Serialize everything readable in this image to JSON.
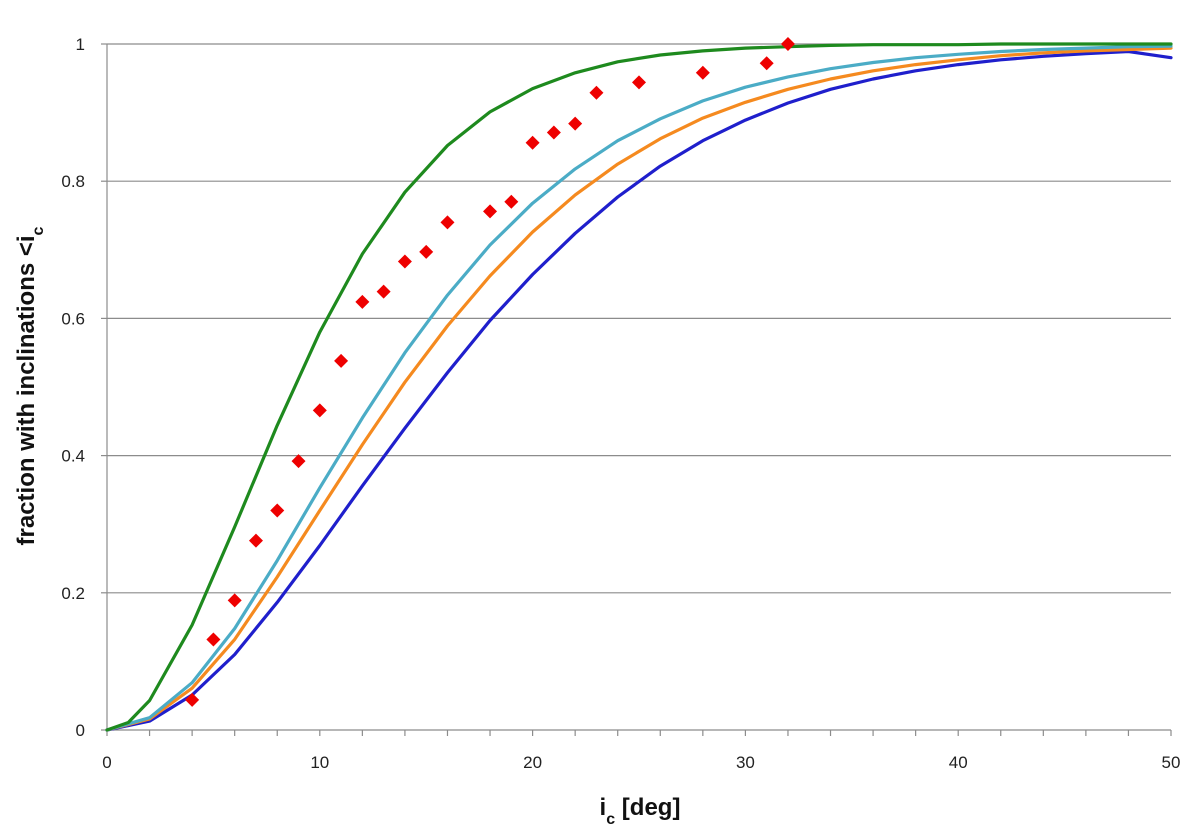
{
  "chart_data": {
    "type": "line",
    "title": "",
    "xlabel": "i",
    "xlabel_sub": "c",
    "xlabel_unit": " [deg]",
    "ylabel": "fraction with inclinations <i",
    "ylabel_sub": "c",
    "xlim": [
      0,
      50
    ],
    "ylim": [
      0,
      1
    ],
    "x_ticks": [
      0,
      10,
      20,
      30,
      40,
      50
    ],
    "x_minor_step": 2,
    "y_ticks": [
      0,
      0.2,
      0.4,
      0.6,
      0.8,
      1
    ],
    "grid": "horizontal",
    "legend": "none",
    "series": [
      {
        "type": "line",
        "color": "#1f1fcc",
        "x": [
          0,
          2,
          4,
          6,
          8,
          10,
          12,
          14,
          16,
          18,
          20,
          22,
          24,
          26,
          28,
          30,
          32,
          34,
          36,
          38,
          40,
          42,
          44,
          46,
          48,
          50
        ],
        "y": [
          0,
          0.013,
          0.051,
          0.11,
          0.186,
          0.269,
          0.356,
          0.44,
          0.521,
          0.597,
          0.664,
          0.724,
          0.777,
          0.822,
          0.859,
          0.889,
          0.914,
          0.934,
          0.949,
          0.961,
          0.97,
          0.977,
          0.982,
          0.986,
          0.989,
          0.98
        ]
      },
      {
        "type": "line",
        "color": "#f58a1f",
        "x": [
          0,
          2,
          4,
          6,
          8,
          10,
          12,
          14,
          16,
          18,
          20,
          22,
          24,
          26,
          28,
          30,
          32,
          34,
          36,
          38,
          40,
          42,
          44,
          46,
          48,
          50
        ],
        "y": [
          0,
          0.016,
          0.061,
          0.132,
          0.223,
          0.32,
          0.416,
          0.507,
          0.589,
          0.662,
          0.726,
          0.78,
          0.825,
          0.862,
          0.892,
          0.915,
          0.934,
          0.949,
          0.961,
          0.97,
          0.977,
          0.983,
          0.987,
          0.99,
          0.992,
          0.994
        ]
      },
      {
        "type": "line",
        "color": "#4bacc6",
        "x": [
          0,
          2,
          4,
          6,
          8,
          10,
          12,
          14,
          16,
          18,
          20,
          22,
          24,
          26,
          28,
          30,
          32,
          34,
          36,
          38,
          40,
          42,
          44,
          46,
          48,
          50
        ],
        "y": [
          0,
          0.018,
          0.069,
          0.148,
          0.247,
          0.353,
          0.455,
          0.55,
          0.634,
          0.707,
          0.768,
          0.818,
          0.859,
          0.891,
          0.917,
          0.937,
          0.952,
          0.964,
          0.973,
          0.98,
          0.985,
          0.989,
          0.992,
          0.994,
          0.996,
          0.997
        ]
      },
      {
        "type": "line",
        "color": "#1e8a1e",
        "x": [
          0,
          1,
          2,
          4,
          6,
          8,
          10,
          12,
          14,
          16,
          18,
          20,
          22,
          24,
          26,
          28,
          30,
          32,
          34,
          36,
          38,
          40,
          42,
          44,
          46,
          48,
          50
        ],
        "y": [
          0,
          0.011,
          0.043,
          0.153,
          0.296,
          0.444,
          0.58,
          0.694,
          0.784,
          0.852,
          0.901,
          0.935,
          0.958,
          0.974,
          0.984,
          0.99,
          0.994,
          0.996,
          0.998,
          0.999,
          0.999,
          0.999,
          1.0,
          1.0,
          1.0,
          1.0,
          1.0
        ]
      },
      {
        "type": "scatter",
        "marker": "diamond",
        "color": "#ee0000",
        "x": [
          4,
          5,
          6,
          7,
          8,
          9,
          10,
          11,
          12,
          13,
          14,
          15,
          16,
          18,
          19,
          20,
          21,
          22,
          23,
          25,
          28,
          31,
          32
        ],
        "y": [
          0.044,
          0.132,
          0.189,
          0.276,
          0.32,
          0.392,
          0.466,
          0.538,
          0.624,
          0.639,
          0.683,
          0.697,
          0.74,
          0.756,
          0.77,
          0.856,
          0.871,
          0.884,
          0.929,
          0.944,
          0.958,
          0.972,
          1.0
        ]
      }
    ]
  }
}
